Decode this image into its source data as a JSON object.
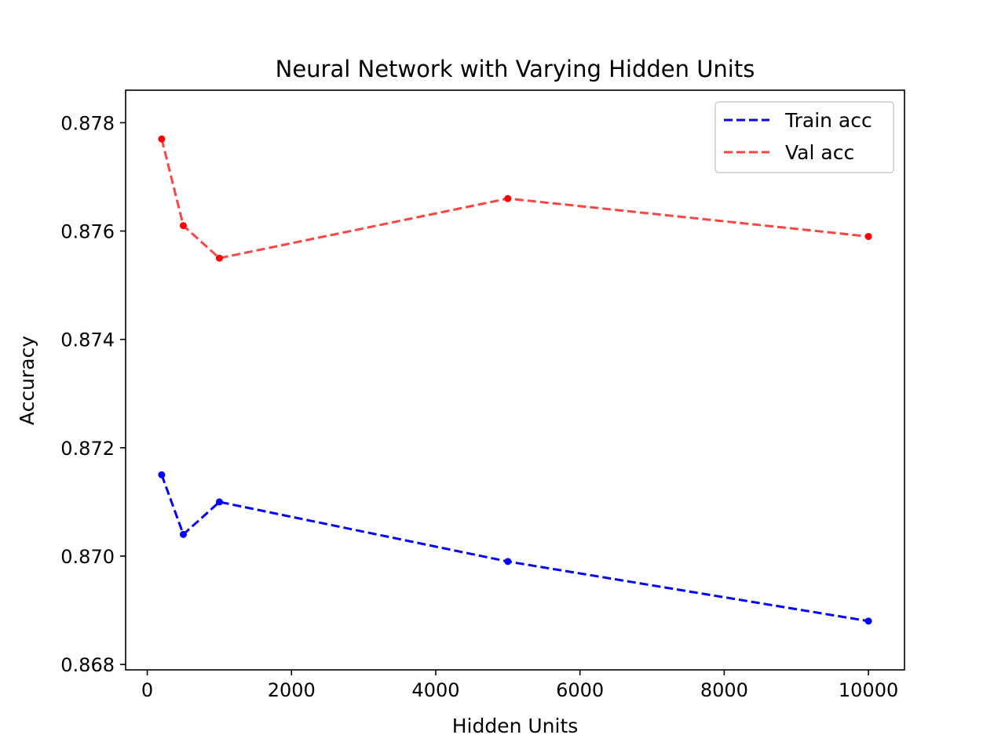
{
  "chart_data": {
    "type": "line",
    "title": "Neural Network with Varying Hidden Units",
    "xlabel": "Hidden Units",
    "ylabel": "Accuracy",
    "x": [
      200,
      500,
      1000,
      5000,
      10000
    ],
    "xlim": [
      -300,
      10500
    ],
    "ylim": [
      0.8679,
      0.8786
    ],
    "xticks": [
      0,
      2000,
      4000,
      6000,
      8000,
      10000
    ],
    "xtick_labels": [
      "0",
      "2000",
      "4000",
      "6000",
      "8000",
      "10000"
    ],
    "yticks": [
      0.868,
      0.87,
      0.872,
      0.874,
      0.876,
      0.878
    ],
    "ytick_labels": [
      "0.868",
      "0.870",
      "0.872",
      "0.874",
      "0.876",
      "0.878"
    ],
    "grid": false,
    "legend_position": "top-right",
    "series": [
      {
        "name": "Train acc",
        "color": "#0000ff",
        "line_style": "dashed",
        "marker": "circle",
        "values": [
          0.8715,
          0.8704,
          0.871,
          0.8699,
          0.8688
        ]
      },
      {
        "name": "Val acc",
        "color": "#ff4444",
        "marker_color": "#ff0000",
        "line_style": "dashed",
        "marker": "circle",
        "values": [
          0.8777,
          0.8761,
          0.8755,
          0.8766,
          0.8759
        ]
      }
    ]
  }
}
